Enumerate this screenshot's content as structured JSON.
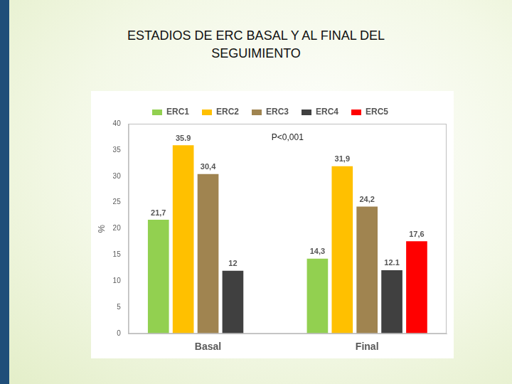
{
  "chart_data": {
    "type": "bar",
    "title": "ESTADIOS DE ERC BASAL Y AL FINAL DEL SEGUIMIENTO",
    "categories": [
      "Basal",
      "Final"
    ],
    "series": [
      {
        "name": "ERC1",
        "color": "#92d050",
        "values": [
          21.7,
          14.3
        ],
        "value_labels": [
          "21,7",
          "14,3"
        ]
      },
      {
        "name": "ERC2",
        "color": "#ffc000",
        "values": [
          35.9,
          31.9
        ],
        "value_labels": [
          "35.9",
          "31,9"
        ]
      },
      {
        "name": "ERC3",
        "color": "#a08450",
        "values": [
          30.4,
          24.2
        ],
        "value_labels": [
          "30,4",
          "24,2"
        ]
      },
      {
        "name": "ERC4",
        "color": "#404040",
        "values": [
          12,
          12.1
        ],
        "value_labels": [
          "12",
          "12.1"
        ]
      },
      {
        "name": "ERC5",
        "color": "#ff0000",
        "values": [
          null,
          17.6
        ],
        "value_labels": [
          null,
          "17,6"
        ]
      }
    ],
    "y_label": "%",
    "annotation": "P<0,001",
    "ylim": [
      0,
      40
    ],
    "yticks": [
      0,
      5,
      10,
      15,
      20,
      25,
      30,
      35,
      40
    ],
    "grid": false,
    "legend": "top",
    "data_labels": true
  }
}
